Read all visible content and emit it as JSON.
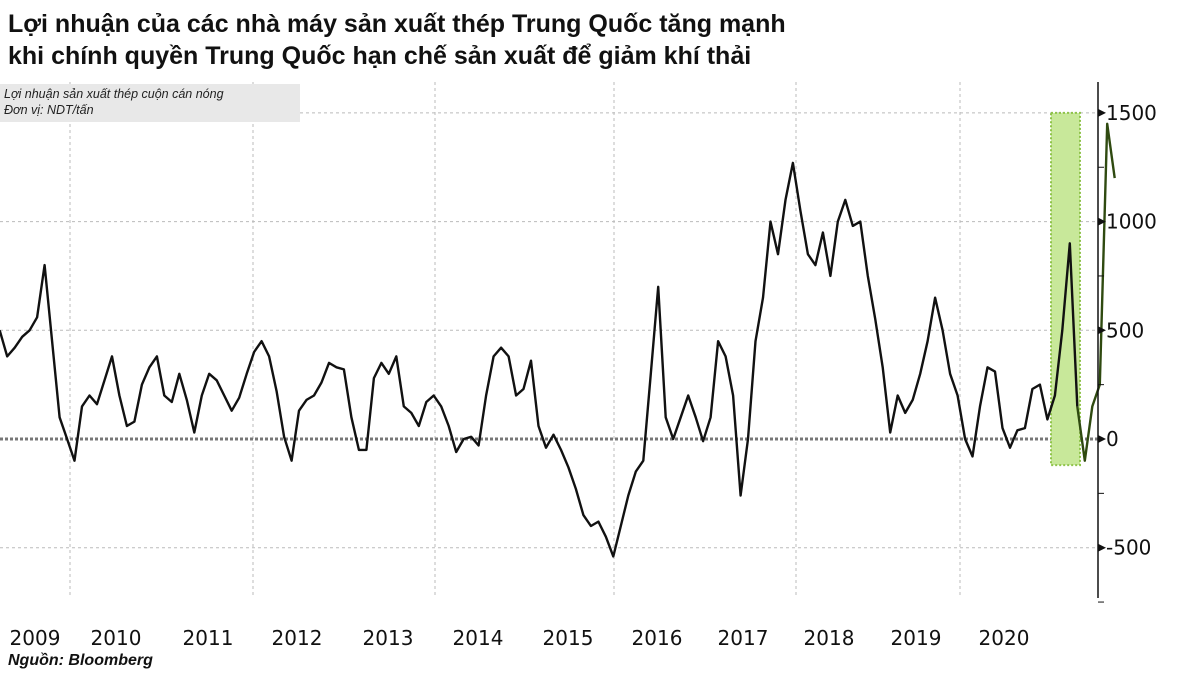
{
  "header": {
    "title_line1": "Lợi nhuận của các nhà máy sản xuất thép Trung Quốc tăng mạnh",
    "title_line2": "khi chính quyền Trung Quốc hạn chế sản xuất để giảm khí thải"
  },
  "legend": {
    "line1": "Lợi nhuận sản xuất thép cuộn cán nóng",
    "line2": "Đơn vị: NDT/tấn"
  },
  "footer": {
    "source": "Nguồn: Bloomberg"
  },
  "colors": {
    "line": "#111111",
    "highlight_fill": "#c8e89a",
    "highlight_border": "#8fc34a",
    "highlight_line": "#2f4a10",
    "grid": "#bbbbbb"
  },
  "chart_data": {
    "type": "line",
    "title": "Lợi nhuận của các nhà máy sản xuất thép Trung Quốc tăng mạnh khi chính quyền Trung Quốc hạn chế sản xuất để giảm khí thải",
    "subtitle": "Lợi nhuận sản xuất thép cuộn cán nóng; Đơn vị: NDT/tấn",
    "xlabel": "",
    "ylabel": "NDT/tấn",
    "ylim": [
      -750,
      1650
    ],
    "yticks": [
      -500,
      0,
      500,
      1000,
      1500
    ],
    "xticks": [
      "2009",
      "2010",
      "2011",
      "2012",
      "2013",
      "2014",
      "2015",
      "2016",
      "2017",
      "2018",
      "2019",
      "2020"
    ],
    "grid": true,
    "y_axis_position": "right",
    "highlight": {
      "from": "2020-08",
      "to": "2021-05",
      "ymin": -120,
      "ymax": 1500,
      "color": "#c8e89a"
    },
    "series": [
      {
        "name": "Lợi nhuận sản xuất thép cuộn cán nóng",
        "points": [
          [
            "2008-12",
            500
          ],
          [
            "2009-01",
            380
          ],
          [
            "2009-02",
            420
          ],
          [
            "2009-03",
            470
          ],
          [
            "2009-04",
            500
          ],
          [
            "2009-05",
            560
          ],
          [
            "2009-06",
            800
          ],
          [
            "2009-07",
            450
          ],
          [
            "2009-08",
            100
          ],
          [
            "2009-09",
            0
          ],
          [
            "2009-10",
            -100
          ],
          [
            "2009-11",
            150
          ],
          [
            "2009-12",
            200
          ],
          [
            "2010-01",
            160
          ],
          [
            "2010-02",
            270
          ],
          [
            "2010-03",
            380
          ],
          [
            "2010-04",
            200
          ],
          [
            "2010-05",
            60
          ],
          [
            "2010-06",
            80
          ],
          [
            "2010-07",
            250
          ],
          [
            "2010-08",
            330
          ],
          [
            "2010-09",
            380
          ],
          [
            "2010-10",
            200
          ],
          [
            "2010-11",
            170
          ],
          [
            "2010-12",
            300
          ],
          [
            "2011-01",
            180
          ],
          [
            "2011-02",
            30
          ],
          [
            "2011-03",
            200
          ],
          [
            "2011-04",
            300
          ],
          [
            "2011-05",
            270
          ],
          [
            "2011-06",
            200
          ],
          [
            "2011-07",
            130
          ],
          [
            "2011-08",
            190
          ],
          [
            "2011-09",
            300
          ],
          [
            "2011-10",
            400
          ],
          [
            "2011-11",
            450
          ],
          [
            "2011-12",
            380
          ],
          [
            "2012-01",
            220
          ],
          [
            "2012-02",
            10
          ],
          [
            "2012-03",
            -100
          ],
          [
            "2012-04",
            130
          ],
          [
            "2012-05",
            180
          ],
          [
            "2012-06",
            200
          ],
          [
            "2012-07",
            260
          ],
          [
            "2012-08",
            350
          ],
          [
            "2012-09",
            330
          ],
          [
            "2012-10",
            320
          ],
          [
            "2012-11",
            100
          ],
          [
            "2012-12",
            -50
          ],
          [
            "2013-01",
            -50
          ],
          [
            "2013-02",
            280
          ],
          [
            "2013-03",
            350
          ],
          [
            "2013-04",
            300
          ],
          [
            "2013-05",
            380
          ],
          [
            "2013-06",
            150
          ],
          [
            "2013-07",
            120
          ],
          [
            "2013-08",
            60
          ],
          [
            "2013-09",
            170
          ],
          [
            "2013-10",
            200
          ],
          [
            "2013-11",
            150
          ],
          [
            "2013-12",
            60
          ],
          [
            "2014-01",
            -60
          ],
          [
            "2014-02",
            0
          ],
          [
            "2014-03",
            10
          ],
          [
            "2014-04",
            -30
          ],
          [
            "2014-05",
            200
          ],
          [
            "2014-06",
            380
          ],
          [
            "2014-07",
            420
          ],
          [
            "2014-08",
            380
          ],
          [
            "2014-09",
            200
          ],
          [
            "2014-10",
            230
          ],
          [
            "2014-11",
            360
          ],
          [
            "2014-12",
            60
          ],
          [
            "2015-01",
            -40
          ],
          [
            "2015-02",
            20
          ],
          [
            "2015-03",
            -50
          ],
          [
            "2015-04",
            -130
          ],
          [
            "2015-05",
            -230
          ],
          [
            "2015-06",
            -350
          ],
          [
            "2015-07",
            -400
          ],
          [
            "2015-08",
            -380
          ],
          [
            "2015-09",
            -450
          ],
          [
            "2015-10",
            -540
          ],
          [
            "2015-11",
            -400
          ],
          [
            "2015-12",
            -260
          ],
          [
            "2016-01",
            -150
          ],
          [
            "2016-02",
            -100
          ],
          [
            "2016-03",
            300
          ],
          [
            "2016-04",
            700
          ],
          [
            "2016-05",
            100
          ],
          [
            "2016-06",
            0
          ],
          [
            "2016-07",
            100
          ],
          [
            "2016-08",
            200
          ],
          [
            "2016-09",
            100
          ],
          [
            "2016-10",
            -10
          ],
          [
            "2016-11",
            100
          ],
          [
            "2016-12",
            450
          ],
          [
            "2017-01",
            380
          ],
          [
            "2017-02",
            200
          ],
          [
            "2017-03",
            -260
          ],
          [
            "2017-04",
            0
          ],
          [
            "2017-05",
            450
          ],
          [
            "2017-06",
            650
          ],
          [
            "2017-07",
            1000
          ],
          [
            "2017-08",
            850
          ],
          [
            "2017-09",
            1100
          ],
          [
            "2017-10",
            1270
          ],
          [
            "2017-11",
            1050
          ],
          [
            "2017-12",
            850
          ],
          [
            "2018-01",
            800
          ],
          [
            "2018-02",
            950
          ],
          [
            "2018-03",
            750
          ],
          [
            "2018-04",
            1000
          ],
          [
            "2018-05",
            1100
          ],
          [
            "2018-06",
            980
          ],
          [
            "2018-07",
            1000
          ],
          [
            "2018-08",
            750
          ],
          [
            "2018-09",
            550
          ],
          [
            "2018-10",
            330
          ],
          [
            "2018-11",
            30
          ],
          [
            "2018-12",
            200
          ],
          [
            "2019-01",
            120
          ],
          [
            "2019-02",
            180
          ],
          [
            "2019-03",
            300
          ],
          [
            "2019-04",
            450
          ],
          [
            "2019-05",
            650
          ],
          [
            "2019-06",
            500
          ],
          [
            "2019-07",
            300
          ],
          [
            "2019-08",
            200
          ],
          [
            "2019-09",
            0
          ],
          [
            "2019-10",
            -80
          ],
          [
            "2019-11",
            150
          ],
          [
            "2019-12",
            330
          ],
          [
            "2020-01",
            310
          ],
          [
            "2020-02",
            50
          ],
          [
            "2020-03",
            -40
          ],
          [
            "2020-04",
            40
          ],
          [
            "2020-05",
            50
          ],
          [
            "2020-06",
            230
          ],
          [
            "2020-07",
            250
          ],
          [
            "2020-08",
            90
          ],
          [
            "2020-09",
            200
          ],
          [
            "2020-10",
            500
          ],
          [
            "2020-11",
            900
          ],
          [
            "2020-12",
            150
          ],
          [
            "2021-01",
            -100
          ],
          [
            "2021-02",
            150
          ],
          [
            "2021-03",
            250
          ],
          [
            "2021-04",
            1450
          ],
          [
            "2021-05",
            1200
          ]
        ]
      }
    ]
  }
}
